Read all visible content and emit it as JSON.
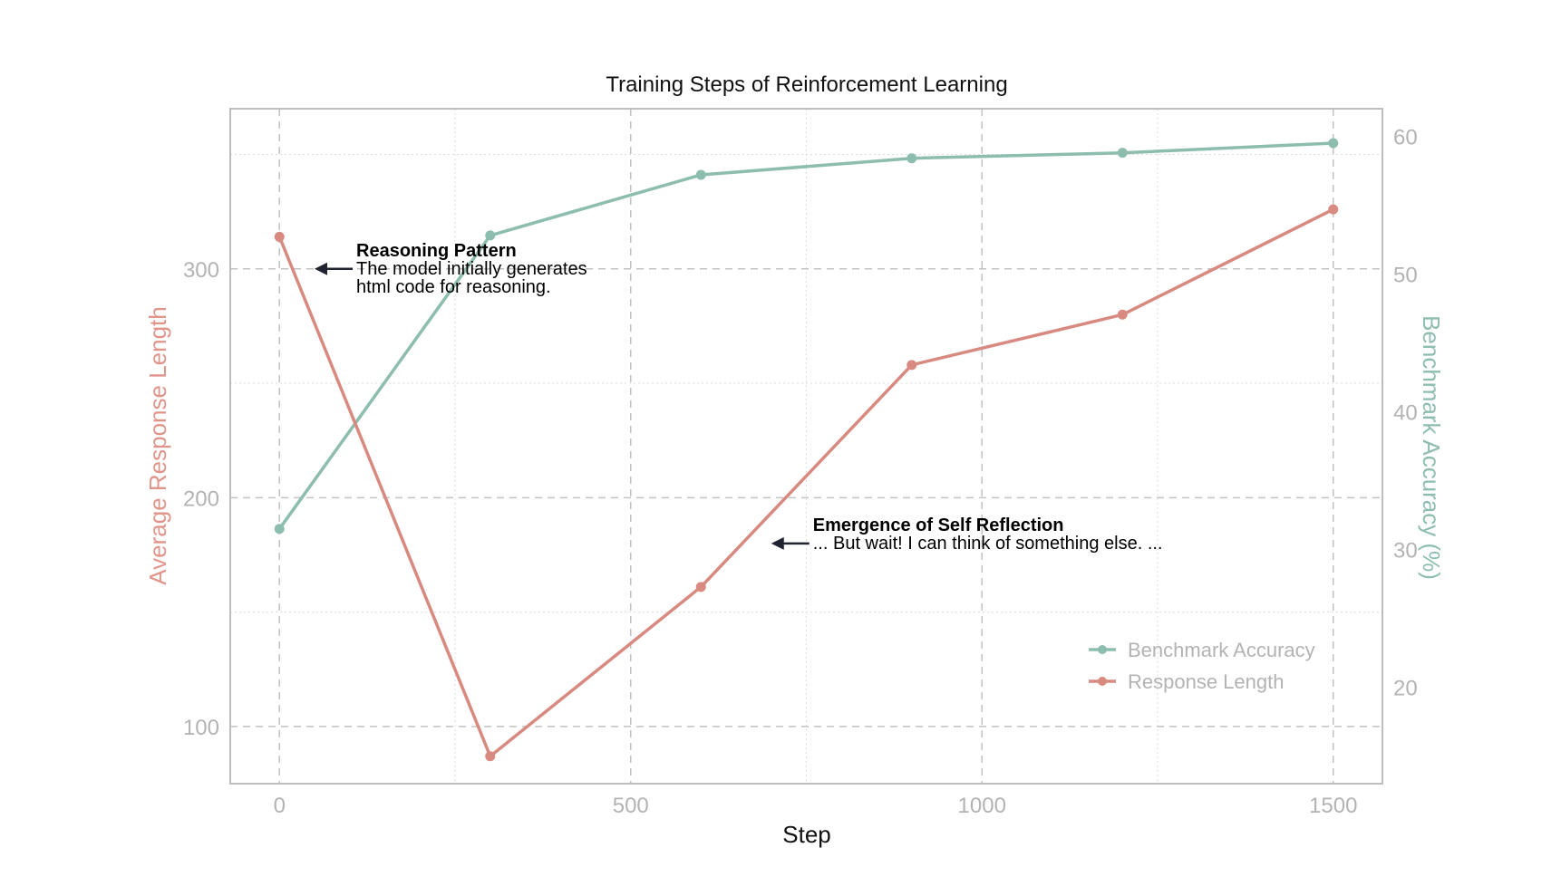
{
  "chart_data": {
    "type": "line",
    "title": "Training Steps of Reinforcement Learning",
    "xlabel": "Step",
    "ylabel_left": "Average Response Length",
    "ylabel_right": "Benchmark Accuracy (%)",
    "x": [
      0,
      300,
      600,
      900,
      1200,
      1500
    ],
    "xlim": [
      -70,
      1570
    ],
    "x_ticks": [
      0,
      500,
      1000,
      1500
    ],
    "y_left_lim": [
      75,
      370
    ],
    "y_left_ticks": [
      100,
      200,
      300
    ],
    "y_right_lim": [
      13,
      62
    ],
    "y_right_ticks": [
      20,
      30,
      40,
      50,
      60
    ],
    "grid": true,
    "legend_position": "lower-right",
    "colors": {
      "response": "#d98a80",
      "accuracy": "#8dbdaf"
    },
    "series": [
      {
        "name": "Benchmark Accuracy",
        "axis": "right",
        "color": "#8dbdaf",
        "values": [
          31.5,
          52.8,
          57.2,
          58.4,
          58.8,
          59.5
        ]
      },
      {
        "name": "Response Length",
        "axis": "left",
        "color": "#d98a80",
        "values": [
          314,
          87,
          161,
          258,
          280,
          326
        ]
      }
    ],
    "annotations": [
      {
        "title": "Reasoning Pattern",
        "lines": [
          "The model initially generates",
          "html code for reasoning."
        ],
        "arrow_x": 50,
        "arrow_y": 300
      },
      {
        "title": "Emergence of Self Reflection",
        "lines": [
          "... But wait! I can think of something else. ..."
        ],
        "arrow_x": 700,
        "arrow_y": 180
      }
    ]
  }
}
